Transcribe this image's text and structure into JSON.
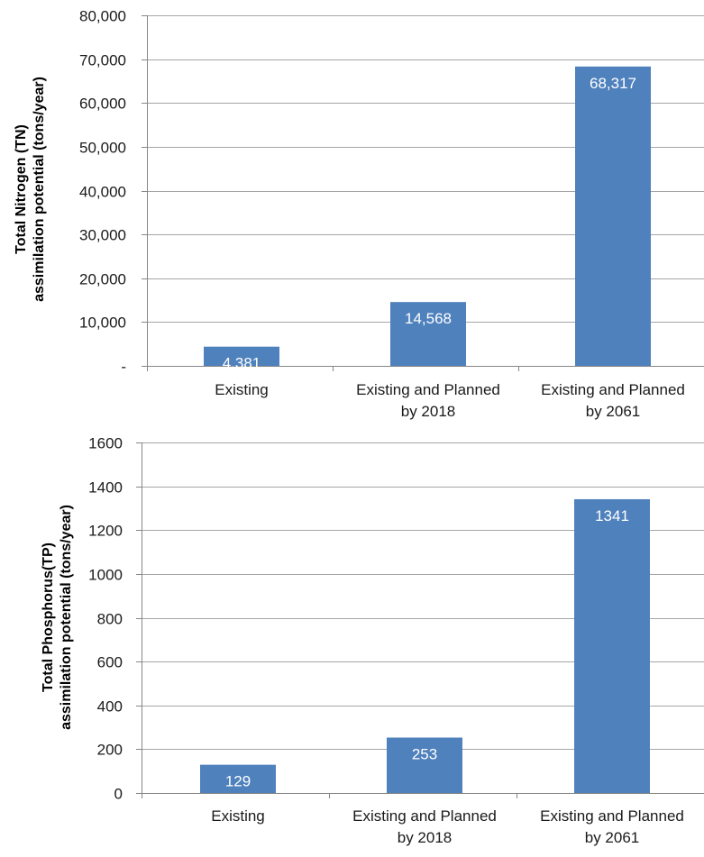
{
  "chart_data": [
    {
      "type": "bar",
      "title": "",
      "ylabel": "Total Nitrogen (TN)\nassimilation potential (tons/year)",
      "xlabel": "",
      "ylim": [
        0,
        80000
      ],
      "ytick_values": [
        0,
        10000,
        20000,
        30000,
        40000,
        50000,
        60000,
        70000,
        80000
      ],
      "ytick_labels": [
        "-",
        "10,000",
        "20,000",
        "30,000",
        "40,000",
        "50,000",
        "60,000",
        "70,000",
        "80,000"
      ],
      "categories": [
        "Existing",
        "Existing and Planned\nby 2018",
        "Existing and Planned\nby 2061"
      ],
      "values": [
        4381,
        14568,
        68317
      ],
      "data_labels": [
        "4,381",
        "14,568",
        "68,317"
      ],
      "grid": true,
      "legend": "none",
      "bar_color": "#4f81bd"
    },
    {
      "type": "bar",
      "title": "",
      "ylabel": "Total Phosphorus(TP)\nassimilation potential (tons/year)",
      "xlabel": "",
      "ylim": [
        0,
        1600
      ],
      "ytick_values": [
        0,
        200,
        400,
        600,
        800,
        1000,
        1200,
        1400,
        1600
      ],
      "ytick_labels": [
        "0",
        "200",
        "400",
        "600",
        "800",
        "1000",
        "1200",
        "1400",
        "1600"
      ],
      "categories": [
        "Existing",
        "Existing and Planned\nby 2018",
        "Existing and Planned\nby 2061"
      ],
      "values": [
        129,
        253,
        1341
      ],
      "data_labels": [
        "129",
        "253",
        "1341"
      ],
      "grid": true,
      "legend": "none",
      "bar_color": "#4f81bd"
    }
  ]
}
